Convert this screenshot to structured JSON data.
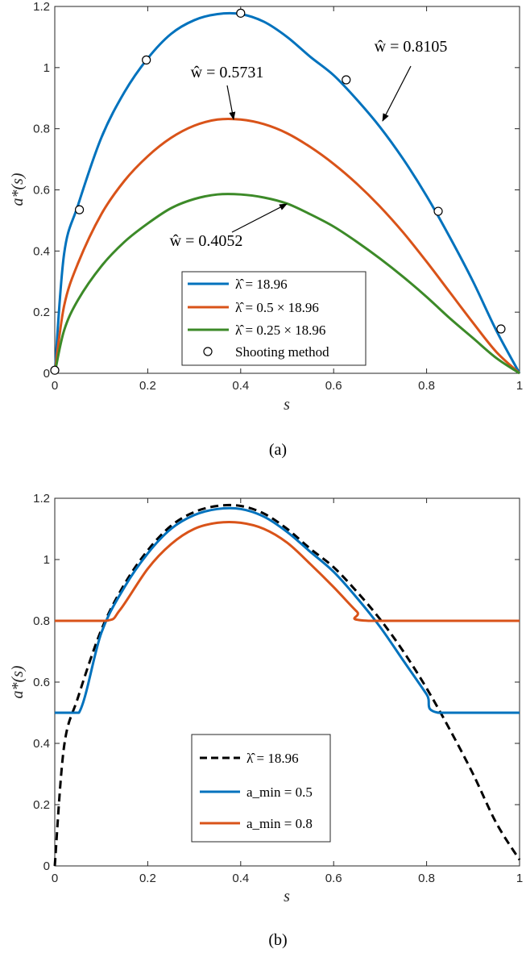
{
  "chart_data": [
    {
      "type": "line",
      "panel_caption": "(a)",
      "xlabel": "s",
      "ylabel": "a*(s)",
      "xlim": [
        0,
        1
      ],
      "ylim": [
        0,
        1.2
      ],
      "xticks": [
        "0",
        "0.2",
        "0.4",
        "0.6",
        "0.8",
        "1"
      ],
      "yticks": [
        "0",
        "0.2",
        "0.4",
        "0.6",
        "0.8",
        "1",
        "1.2"
      ],
      "grid": false,
      "legend_position": "bottom-center",
      "series": [
        {
          "name": "λ̂ = 18.96",
          "color": "#0072BD",
          "x": [
            0,
            0.02,
            0.05,
            0.1,
            0.15,
            0.2,
            0.25,
            0.3,
            0.35,
            0.4,
            0.45,
            0.5,
            0.55,
            0.6,
            0.65,
            0.7,
            0.75,
            0.8,
            0.85,
            0.9,
            0.95,
            1.0
          ],
          "y": [
            0,
            0.39,
            0.55,
            0.77,
            0.92,
            1.03,
            1.11,
            1.155,
            1.175,
            1.175,
            1.15,
            1.1,
            1.035,
            0.975,
            0.895,
            0.805,
            0.7,
            0.58,
            0.445,
            0.3,
            0.14,
            0
          ]
        },
        {
          "name": "λ̂ = 0.5 × 18.96",
          "color": "#D95319",
          "x": [
            0,
            0.02,
            0.05,
            0.1,
            0.15,
            0.2,
            0.25,
            0.3,
            0.35,
            0.4,
            0.45,
            0.5,
            0.55,
            0.6,
            0.65,
            0.7,
            0.75,
            0.8,
            0.85,
            0.9,
            0.95,
            1.0
          ],
          "y": [
            0,
            0.22,
            0.36,
            0.52,
            0.63,
            0.71,
            0.77,
            0.81,
            0.83,
            0.83,
            0.815,
            0.785,
            0.74,
            0.685,
            0.62,
            0.545,
            0.46,
            0.365,
            0.265,
            0.165,
            0.07,
            0
          ]
        },
        {
          "name": "λ̂ = 0.25 × 18.96",
          "color": "#3C8A28",
          "x": [
            0,
            0.02,
            0.05,
            0.1,
            0.15,
            0.2,
            0.25,
            0.3,
            0.35,
            0.4,
            0.45,
            0.5,
            0.55,
            0.6,
            0.65,
            0.7,
            0.75,
            0.8,
            0.85,
            0.9,
            0.95,
            1.0
          ],
          "y": [
            0,
            0.14,
            0.24,
            0.35,
            0.43,
            0.49,
            0.54,
            0.57,
            0.585,
            0.585,
            0.575,
            0.555,
            0.52,
            0.48,
            0.43,
            0.375,
            0.315,
            0.25,
            0.18,
            0.115,
            0.05,
            0
          ]
        },
        {
          "name": "Shooting method",
          "marker": "open-circle",
          "color": "#000000",
          "x": [
            0,
            0.053,
            0.197,
            0.4,
            0.627,
            0.825,
            0.96
          ],
          "y": [
            0.01,
            0.535,
            1.025,
            1.178,
            0.96,
            0.53,
            0.145
          ]
        }
      ],
      "annotations": [
        {
          "text": "ŵ = 0.8105",
          "points_to": [
            0.705,
            0.825
          ]
        },
        {
          "text": "ŵ = 0.5731",
          "points_to": [
            0.385,
            0.835
          ]
        },
        {
          "text": "ŵ = 0.4052",
          "points_to": [
            0.5,
            0.665
          ]
        }
      ]
    },
    {
      "type": "line",
      "panel_caption": "(b)",
      "xlabel": "s",
      "ylabel": "a*(s)",
      "xlim": [
        0,
        1
      ],
      "ylim": [
        0,
        1.2
      ],
      "xticks": [
        "0",
        "0.2",
        "0.4",
        "0.6",
        "0.8",
        "1"
      ],
      "yticks": [
        "0",
        "0.2",
        "0.4",
        "0.6",
        "0.8",
        "1",
        "1.2"
      ],
      "grid": false,
      "legend_position": "bottom-center",
      "series": [
        {
          "name": "λ̂ = 18.96",
          "color": "#000000",
          "dash": "dashed",
          "x": [
            0,
            0.02,
            0.05,
            0.1,
            0.15,
            0.2,
            0.25,
            0.3,
            0.35,
            0.4,
            0.45,
            0.5,
            0.55,
            0.6,
            0.65,
            0.7,
            0.75,
            0.8,
            0.85,
            0.9,
            0.95,
            1.0
          ],
          "y": [
            0,
            0.39,
            0.55,
            0.77,
            0.92,
            1.03,
            1.11,
            1.155,
            1.175,
            1.175,
            1.15,
            1.1,
            1.035,
            0.975,
            0.895,
            0.805,
            0.7,
            0.58,
            0.445,
            0.3,
            0.14,
            0.02
          ]
        },
        {
          "name": "a_min = 0.5",
          "color": "#0072BD",
          "x": [
            0,
            0.052,
            0.1,
            0.15,
            0.2,
            0.25,
            0.3,
            0.35,
            0.4,
            0.45,
            0.5,
            0.55,
            0.6,
            0.65,
            0.7,
            0.75,
            0.8,
            0.825,
            1.0
          ],
          "y": [
            0.5,
            0.5,
            0.76,
            0.91,
            1.02,
            1.1,
            1.145,
            1.165,
            1.165,
            1.14,
            1.09,
            1.025,
            0.96,
            0.875,
            0.78,
            0.67,
            0.56,
            0.5,
            0.5
          ]
        },
        {
          "name": "a_min = 0.8",
          "color": "#D95319",
          "x": [
            0,
            0.11,
            0.14,
            0.2,
            0.25,
            0.3,
            0.35,
            0.4,
            0.45,
            0.5,
            0.55,
            0.6,
            0.65,
            0.675,
            1.0
          ],
          "y": [
            0.8,
            0.8,
            0.835,
            0.97,
            1.05,
            1.1,
            1.12,
            1.12,
            1.1,
            1.055,
            0.985,
            0.91,
            0.83,
            0.8,
            0.8
          ]
        }
      ]
    }
  ]
}
